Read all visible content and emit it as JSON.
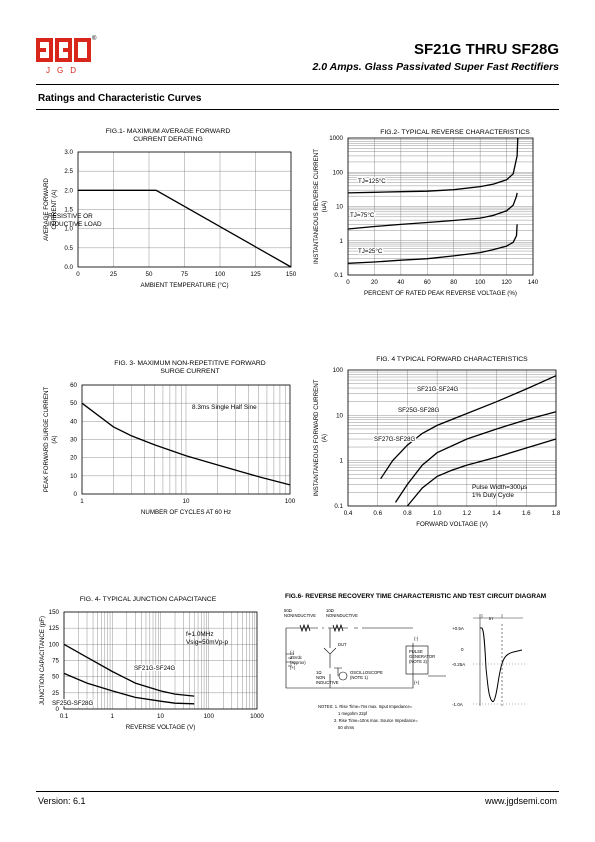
{
  "header": {
    "logo_text": "JGD",
    "logo_reg": "®",
    "title": "SF21G THRU SF28G",
    "subtitle": "2.0 Amps. Glass Passivated Super Fast Rectifiers",
    "brand_color": "#d8261b"
  },
  "section_title": "Ratings and Characteristic Curves",
  "footer": {
    "version": "Version: 6.1",
    "website": "www.jgdsemi.com"
  },
  "chart_data": [
    {
      "id": "fig1",
      "type": "line",
      "title": [
        "FIG.1- MAXIMUM AVERAGE FORWARD",
        "CURRENT DERATING"
      ],
      "xlabel": "AMBIENT TEMPERATURE (°C)",
      "ylabel": [
        "AVERAGE FORWARD",
        "CURRENT (A)"
      ],
      "xlim": [
        0,
        150
      ],
      "ylim": [
        0,
        3
      ],
      "xticks": [
        0,
        25,
        50,
        75,
        100,
        125,
        150
      ],
      "yticks": [
        0.0,
        0.5,
        1.0,
        1.5,
        2.0,
        2.5,
        3.0
      ],
      "ytick_labels": [
        "0.0",
        "0.5",
        "1.0",
        "1.5",
        "2.0",
        "2.5",
        "3.0"
      ],
      "annotations": [
        "RESISTIVE OR",
        "INDUCTIVE LOAD"
      ],
      "series": [
        {
          "x": [
            0,
            55,
            150
          ],
          "y": [
            2.0,
            2.0,
            0.0
          ]
        }
      ]
    },
    {
      "id": "fig2",
      "type": "line",
      "title": [
        "FIG.2- TYPICAL REVERSE CHARACTERISTICS"
      ],
      "xlabel": "PERCENT OF RATED PEAK REVERSE VOLTAGE (%)",
      "ylabel": [
        "INSTANTANEOUS REVERSE CURRENT",
        "(uA)"
      ],
      "xlim": [
        0,
        140
      ],
      "ylim": [
        0.1,
        1000
      ],
      "yscale": "log",
      "xticks": [
        0,
        20,
        40,
        60,
        80,
        100,
        120,
        140
      ],
      "yticks": [
        0.1,
        1,
        10,
        100,
        1000
      ],
      "ytick_labels": [
        "0.1",
        "1",
        "10",
        "100",
        "1000"
      ],
      "series": [
        {
          "name": "TJ=125°C",
          "x": [
            0,
            20,
            40,
            60,
            80,
            100,
            110,
            120,
            125,
            128,
            128.5
          ],
          "y": [
            25,
            26,
            27,
            28,
            31,
            38,
            45,
            60,
            90,
            300,
            1000
          ]
        },
        {
          "name": "TJ=75°C",
          "x": [
            0,
            20,
            40,
            60,
            80,
            100,
            110,
            120,
            125,
            127.5,
            128
          ],
          "y": [
            2.2,
            2.6,
            3.0,
            3.4,
            3.9,
            4.6,
            5.5,
            7.5,
            11,
            20,
            25
          ]
        },
        {
          "name": "TJ=25°C",
          "x": [
            0,
            20,
            40,
            60,
            80,
            100,
            110,
            120,
            125,
            127.5,
            128
          ],
          "y": [
            0.22,
            0.24,
            0.27,
            0.3,
            0.36,
            0.45,
            0.55,
            0.7,
            0.9,
            1.4,
            3.0
          ]
        }
      ]
    },
    {
      "id": "fig3",
      "type": "line",
      "title": [
        "FIG. 3- MAXIMUM  NON-REPETITIVE FORWARD",
        "SURGE CURRENT"
      ],
      "xlabel": "NUMBER OF CYCLES AT 60 Hz",
      "ylabel": [
        "PEAK FORWARD SURGE CURRENT",
        "(A)"
      ],
      "xlim": [
        1,
        100
      ],
      "ylim": [
        0,
        60
      ],
      "xscale": "log",
      "xticks": [
        1,
        10,
        100
      ],
      "xtick_labels": [
        "1",
        "10",
        "100"
      ],
      "yticks": [
        0,
        10,
        20,
        30,
        40,
        50,
        60
      ],
      "annotations": [
        "8.3ms Single Half Sine"
      ],
      "series": [
        {
          "x": [
            1,
            2,
            3,
            5,
            10,
            20,
            50,
            100
          ],
          "y": [
            50,
            37,
            32,
            27,
            21,
            16,
            9.5,
            5
          ]
        }
      ]
    },
    {
      "id": "fig4",
      "type": "line",
      "title": [
        "FIG. 4 TYPICAL FORWARD CHARACTERISTICS"
      ],
      "xlabel": "FORWARD VOLTAGE (V)",
      "ylabel": [
        "INSTANTANEOUS FORWARD CURRENT",
        "(A)"
      ],
      "xlim": [
        0.4,
        1.8
      ],
      "ylim": [
        0.1,
        100
      ],
      "yscale": "log",
      "xticks": [
        0.4,
        0.6,
        0.8,
        1.0,
        1.2,
        1.4,
        1.6,
        1.8
      ],
      "xtick_labels": [
        "0.4",
        "0.6",
        "0.8",
        "1.0",
        "1.2",
        "1.4",
        "1.6",
        "1.8"
      ],
      "yticks": [
        0.1,
        1,
        10,
        100
      ],
      "ytick_labels": [
        "0.1",
        "1",
        "10",
        "100"
      ],
      "annotations": [
        "Pulse Width=300μs",
        "1% Duty Cycle"
      ],
      "series": [
        {
          "name": "SF21G-SF24G",
          "x": [
            0.62,
            0.7,
            0.8,
            0.9,
            1.0,
            1.2,
            1.4,
            1.6,
            1.8
          ],
          "y": [
            0.4,
            1,
            2.2,
            4,
            6,
            11,
            20,
            38,
            75
          ]
        },
        {
          "name": "SF25G-SF28G",
          "x": [
            0.72,
            0.8,
            0.9,
            1.0,
            1.2,
            1.4,
            1.6,
            1.8
          ],
          "y": [
            0.12,
            0.3,
            0.8,
            1.5,
            3,
            5,
            8,
            12
          ]
        },
        {
          "name": "SF27G-SF28G",
          "x": [
            0.8,
            0.9,
            1.0,
            1.1,
            1.2,
            1.4,
            1.6,
            1.8
          ],
          "y": [
            0.1,
            0.25,
            0.45,
            0.62,
            0.8,
            1.2,
            1.9,
            3
          ]
        }
      ]
    },
    {
      "id": "fig5",
      "type": "line",
      "title": [
        "FIG. 4- TYPICAL JUNCTION CAPACITANCE"
      ],
      "xlabel": "REVERSE VOLTAGE (V)",
      "ylabel": [
        "JUNCTION CAPACITANCE (pF)"
      ],
      "xlim": [
        0.1,
        1000
      ],
      "ylim": [
        0,
        150
      ],
      "xscale": "log",
      "xticks": [
        0.1,
        1,
        10,
        100,
        1000
      ],
      "xtick_labels": [
        "0.1",
        "1",
        "10",
        "100",
        "1000"
      ],
      "yticks": [
        0,
        25,
        50,
        75,
        100,
        125,
        150
      ],
      "annotations": [
        "f=1.0MHz",
        "Vsig=50mVp-p"
      ],
      "series": [
        {
          "name": "SF21G-SF24G",
          "x": [
            0.1,
            0.3,
            1,
            3,
            10,
            20,
            50
          ],
          "y": [
            100,
            80,
            58,
            40,
            28,
            23,
            20
          ]
        },
        {
          "name": "SF25G-SF28G",
          "x": [
            0.1,
            0.3,
            1,
            3,
            10,
            20,
            50
          ],
          "y": [
            55,
            40,
            28,
            18,
            12,
            9,
            8
          ]
        }
      ]
    }
  ],
  "fig6": {
    "title": "FIG.6- REVERSE RECOVERY TIME CHARACTERISTIC AND TEST CIRCUIT DIAGRAM",
    "labels": {
      "r50": "50Ω",
      "r50_sub": "NONINDUCTIVE",
      "r10": "10Ω",
      "r10_sub": "NONINDUCTIVE",
      "plus_left": "(+)",
      "dut": "DUT",
      "supply": [
        "(-)",
        "25Vdc",
        "(approx)",
        "(+)"
      ],
      "r1": [
        "1Ω",
        "NON",
        "INDUCTIVE"
      ],
      "scope": [
        "OSCILLOSCOPE",
        "(NOTE 1)"
      ],
      "pulse": [
        "PULSE",
        "GENERATOR",
        "(NOTE 2)"
      ],
      "pg_minus": "(-)",
      "pg_plus": "(+)",
      "notes": [
        "NOTES: 1. Rise Time=7ns max. Input Impedance=",
        "1 megohm 22pf",
        "2. Rise Time=10ns max. Source Impedance=",
        "50 ohms"
      ],
      "wave_trr": "trr",
      "wave_levels": [
        "+0.5A",
        "0",
        "-0.25A",
        "-1.0A"
      ]
    }
  }
}
